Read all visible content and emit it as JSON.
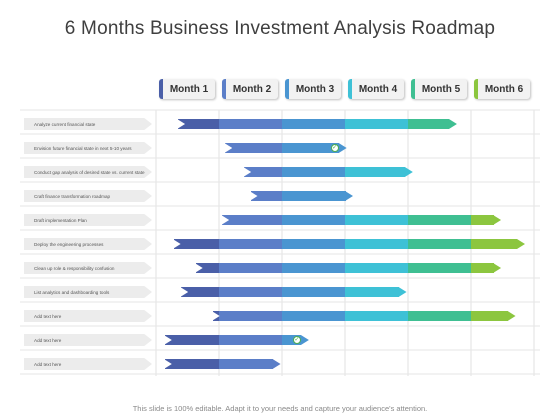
{
  "title": "6 Months Business Investment Analysis Roadmap",
  "months": [
    {
      "label": "Month 1",
      "accent": "#4a5fa8"
    },
    {
      "label": "Month 2",
      "accent": "#5b7ec8"
    },
    {
      "label": "Month 3",
      "accent": "#4a95d1"
    },
    {
      "label": "Month 4",
      "accent": "#3ec1d6"
    },
    {
      "label": "Month 5",
      "accent": "#3fbf92"
    },
    {
      "label": "Month 6",
      "accent": "#8cc63f"
    }
  ],
  "colors": [
    "#4a5fa8",
    "#5b7ec8",
    "#4a95d1",
    "#3ec1d6",
    "#3fbf92",
    "#8cc63f"
  ],
  "tasks": [
    {
      "label": "Analyze current financial state",
      "start": 0.35,
      "end": 4.65,
      "check": false
    },
    {
      "label": "Envision future financial state in next 5-10 years",
      "start": 1.1,
      "end": 2.9,
      "check": true
    },
    {
      "label": "Conduct gap analysis of desired state vs. current state",
      "start": 1.4,
      "end": 3.95,
      "check": false
    },
    {
      "label": "Craft finance transformation roadmap",
      "start": 1.5,
      "end": 3.0,
      "check": false
    },
    {
      "label": "Draft implementation Plan",
      "start": 1.05,
      "end": 5.35,
      "check": false
    },
    {
      "label": "Deploy the engineering processes",
      "start": 0.28,
      "end": 5.73,
      "check": false
    },
    {
      "label": "Clean up role & responsibility confusion",
      "start": 0.63,
      "end": 5.35,
      "check": false
    },
    {
      "label": "List analytics and dashboarding tools",
      "start": 0.4,
      "end": 3.85,
      "check": false
    },
    {
      "label": "Add text here",
      "start": 0.9,
      "end": 5.58,
      "check": false
    },
    {
      "label": "Add text here",
      "start": 0.14,
      "end": 2.3,
      "check": true
    },
    {
      "label": "Add text here",
      "start": 0.14,
      "end": 1.85,
      "check": false
    }
  ],
  "footer": "This slide is 100% editable. Adapt it to your needs and capture your audience's attention."
}
